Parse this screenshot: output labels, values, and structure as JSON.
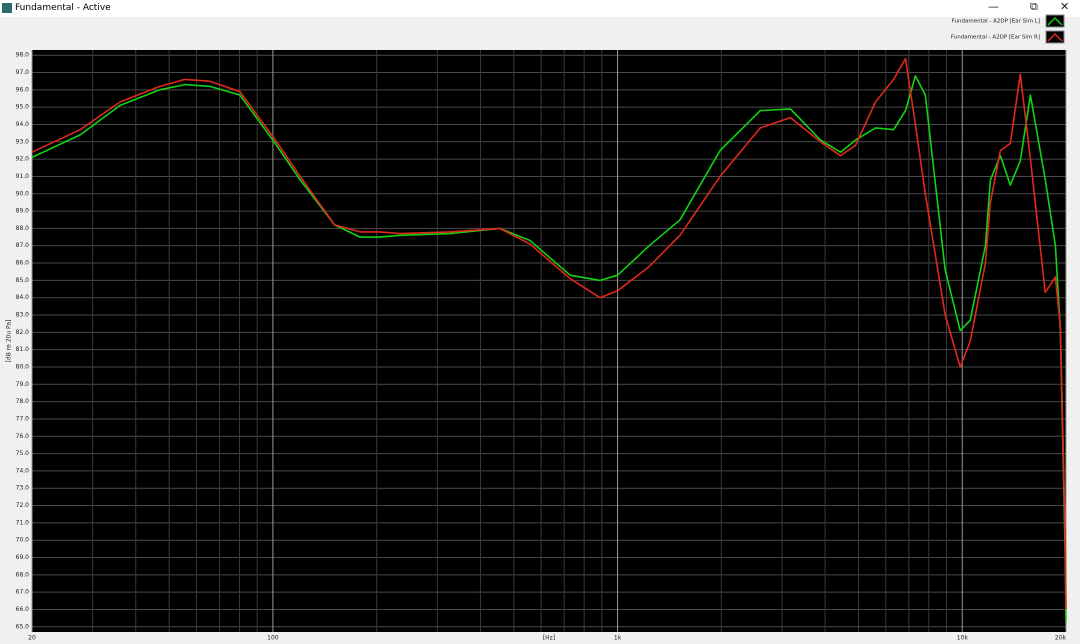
{
  "window_title": "Fundamental - Active",
  "chart_data": {
    "type": "line",
    "x_label": "[Hz]",
    "y_label": "[dB re 20u Pa]",
    "x_log": true,
    "grid": true,
    "xlim": [
      20,
      20000
    ],
    "ylim": [
      64.7,
      98.3
    ],
    "xticks": [
      20,
      100,
      {
        "value": 1000,
        "label": "1k"
      },
      {
        "value": 10000,
        "label": "10k"
      },
      {
        "value": 20000,
        "label": "20k"
      }
    ],
    "xminorticks": [
      30,
      40,
      50,
      60,
      70,
      80,
      90,
      200,
      300,
      400,
      500,
      600,
      700,
      800,
      900,
      2000,
      3000,
      4000,
      5000,
      6000,
      7000,
      8000,
      9000
    ],
    "yticks": [
      {
        "value": 65,
        "label": "65.0"
      },
      {
        "value": 66,
        "label": "66.0"
      },
      {
        "value": 67,
        "label": "67.0"
      },
      {
        "value": 68,
        "label": "68.0"
      },
      {
        "value": 69,
        "label": "69.0"
      },
      {
        "value": 70,
        "label": "70.0"
      },
      {
        "value": 71,
        "label": "71.0"
      },
      {
        "value": 72,
        "label": "72.0"
      },
      {
        "value": 73,
        "label": "73.0"
      },
      {
        "value": 74,
        "label": "74.0"
      },
      {
        "value": 75,
        "label": "75.0"
      },
      {
        "value": 76,
        "label": "76.0"
      },
      {
        "value": 77,
        "label": "77.0"
      },
      {
        "value": 78,
        "label": "78.0"
      },
      {
        "value": 79,
        "label": "79.0"
      },
      {
        "value": 80,
        "label": "80.0"
      },
      {
        "value": 81,
        "label": "81.0"
      },
      {
        "value": 82,
        "label": "82.0"
      },
      {
        "value": 83,
        "label": "83.0"
      },
      {
        "value": 84,
        "label": "84.0"
      },
      {
        "value": 85,
        "label": "85.0"
      },
      {
        "value": 86,
        "label": "86.0"
      },
      {
        "value": 87,
        "label": "87.0"
      },
      {
        "value": 88,
        "label": "88.0"
      },
      {
        "value": 89,
        "label": "89.0"
      },
      {
        "value": 90,
        "label": "90.0"
      },
      {
        "value": 91,
        "label": "91.0"
      },
      {
        "value": 92,
        "label": "92.0"
      },
      {
        "value": 93,
        "label": "93.0"
      },
      {
        "value": 94,
        "label": "94.0"
      },
      {
        "value": 95,
        "label": "95.0"
      },
      {
        "value": 96,
        "label": "96.0"
      },
      {
        "value": 97,
        "label": "97.0"
      },
      {
        "value": 98,
        "label": "98.0"
      }
    ],
    "x": [
      20,
      27.6,
      36,
      47,
      55.5,
      65.6,
      80.2,
      100,
      120,
      151,
      179,
      204,
      234,
      326,
      455,
      557,
      728,
      889,
      1000,
      1236,
      1517,
      1984,
      2594,
      3172,
      3879,
      4434,
      4902,
      5603,
      6320,
      6846,
      7315,
      7813,
      8925,
      9866,
      10550,
      11670,
      12070,
      12900,
      13790,
      14740,
      15770,
      17420,
      18630,
      19260,
      19910,
      20000
    ],
    "series": [
      {
        "name": "Fundamental - A2DP [Ear Sim L]",
        "color": "#12d312",
        "values": [
          92.1,
          93.4,
          95.1,
          96.0,
          96.3,
          96.2,
          95.7,
          93.1,
          90.8,
          88.2,
          87.5,
          87.5,
          87.6,
          87.7,
          88.0,
          87.3,
          85.3,
          85.0,
          85.3,
          87.0,
          88.5,
          92.5,
          94.8,
          94.9,
          93.1,
          92.4,
          93.1,
          93.8,
          93.7,
          94.8,
          96.8,
          95.7,
          85.6,
          82.1,
          82.7,
          87.0,
          90.8,
          92.2,
          90.5,
          91.9,
          95.7,
          90.8,
          87.0,
          82.1,
          68.9,
          65.3
        ]
      },
      {
        "name": "Fundamental - A2DP [Ear Sim R]",
        "color": "#e0281e",
        "values": [
          92.4,
          93.7,
          95.3,
          96.2,
          96.6,
          96.5,
          95.9,
          93.3,
          91.0,
          88.2,
          87.8,
          87.8,
          87.7,
          87.8,
          88.0,
          87.1,
          85.1,
          84.0,
          84.4,
          85.8,
          87.6,
          91.0,
          93.8,
          94.4,
          93.0,
          92.2,
          92.8,
          95.3,
          96.6,
          97.8,
          94.0,
          90.0,
          83.0,
          80.0,
          81.5,
          86.0,
          89.5,
          92.5,
          92.9,
          96.9,
          92.0,
          84.3,
          85.2,
          82.3,
          70.0,
          66.0
        ]
      }
    ]
  }
}
